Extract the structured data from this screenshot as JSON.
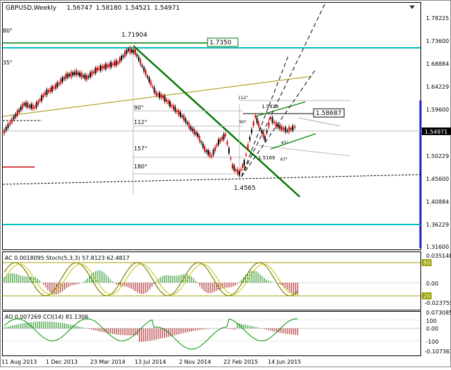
{
  "header": {
    "symbol": "GBPUSD,Weekly",
    "open": "1.56747",
    "high": "1.58180",
    "low": "1.54521",
    "close": "1.54971"
  },
  "main_price_axis": [
    "1.78225",
    "1.73600",
    "1.68884",
    "1.64229",
    "1.59600",
    "1.54971",
    "1.50229",
    "1.45600",
    "1.40884",
    "1.36229",
    "1.31600"
  ],
  "price_tags": {
    "level_upper": "1.7350",
    "level_mid": "1.58687",
    "current": "1.54971"
  },
  "annotations": {
    "high_top": "1.71904",
    "low_bottom": "1.4565",
    "peak_right": "1.5929",
    "swing_low_right": "1.5169"
  },
  "fib_levels": {
    "left": [
      "80°",
      "35°",
      "90°",
      "112°",
      "157°",
      "180°"
    ],
    "right": [
      "112°",
      "90°",
      "45°",
      "67°"
    ]
  },
  "ac_stoch_panel": {
    "label": "AC 0.0018095  Stoch(5,3,3) 57.8123 62.4817",
    "axis": [
      "0.035148",
      "80",
      "0.00",
      "20",
      "-0.023755"
    ]
  },
  "ao_cci_panel": {
    "label": "AO 0.007269  CCI(14) 81.1306",
    "axis": [
      "0.073085",
      "100",
      "0.00",
      "-100",
      "-0.107361"
    ]
  },
  "time_axis": [
    "11 Aug 2013",
    "1 Dec 2013",
    "23 Mar 2014",
    "13 Jul 2014",
    "2 Nov 2014",
    "22 Feb 2015",
    "14 Jun 2015"
  ],
  "colors": {
    "bull_candle": "#000000",
    "bear_candle": "#ff0000",
    "trend_green": "#007700",
    "horizontal_cyan": "#00c0c0",
    "fan_olive": "#a09000",
    "indicator_olive": "#9aa000",
    "cci_green": "#00a000",
    "hist_red": "#a00000",
    "hist_green": "#008000"
  }
}
